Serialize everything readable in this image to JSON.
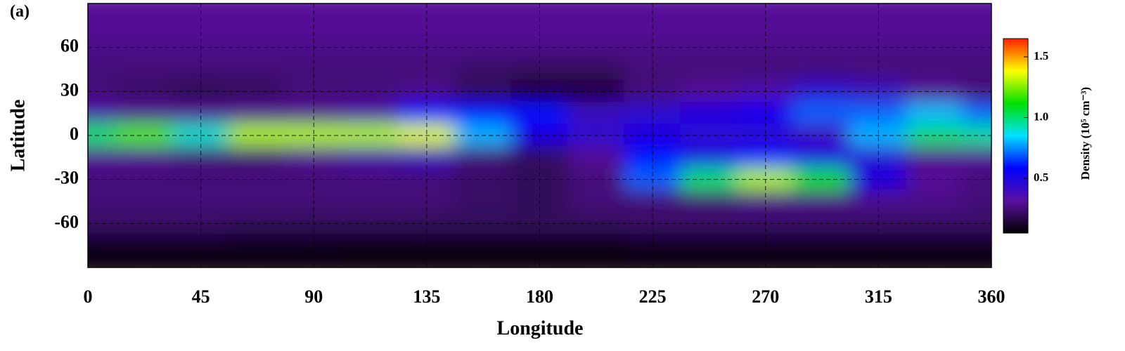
{
  "panel_label": "(a)",
  "chart_data": {
    "type": "heatmap",
    "xlabel": "Longitude",
    "ylabel": "Latitude",
    "x": [
      0,
      22.5,
      45,
      67.5,
      90,
      112.5,
      135,
      157.5,
      180,
      202.5,
      225,
      247.5,
      270,
      292.5,
      315,
      337.5,
      360
    ],
    "y": [
      90,
      75,
      60,
      45,
      30,
      15,
      0,
      -15,
      -30,
      -45,
      -60,
      -75,
      -90
    ],
    "values": [
      [
        0.3,
        0.3,
        0.3,
        0.3,
        0.3,
        0.3,
        0.3,
        0.3,
        0.3,
        0.3,
        0.3,
        0.3,
        0.3,
        0.3,
        0.3,
        0.3,
        0.3
      ],
      [
        0.3,
        0.3,
        0.3,
        0.3,
        0.3,
        0.3,
        0.3,
        0.3,
        0.3,
        0.3,
        0.3,
        0.3,
        0.3,
        0.3,
        0.3,
        0.3,
        0.3
      ],
      [
        0.28,
        0.28,
        0.28,
        0.28,
        0.28,
        0.28,
        0.28,
        0.28,
        0.28,
        0.28,
        0.28,
        0.28,
        0.28,
        0.28,
        0.28,
        0.28,
        0.28
      ],
      [
        0.25,
        0.25,
        0.25,
        0.25,
        0.25,
        0.25,
        0.25,
        0.22,
        0.2,
        0.2,
        0.25,
        0.25,
        0.25,
        0.25,
        0.25,
        0.25,
        0.25
      ],
      [
        0.25,
        0.22,
        0.18,
        0.2,
        0.25,
        0.25,
        0.28,
        0.2,
        0.15,
        0.15,
        0.25,
        0.3,
        0.35,
        0.45,
        0.4,
        0.3,
        0.25
      ],
      [
        0.35,
        0.3,
        0.3,
        0.3,
        0.3,
        0.35,
        0.6,
        0.6,
        0.6,
        0.4,
        0.45,
        0.5,
        0.55,
        0.7,
        0.7,
        0.8,
        0.7
      ],
      [
        1.0,
        1.2,
        0.9,
        1.3,
        1.3,
        1.3,
        1.35,
        0.8,
        0.5,
        0.45,
        0.5,
        0.45,
        0.45,
        0.4,
        0.8,
        1.0,
        0.95
      ],
      [
        0.3,
        0.3,
        0.25,
        0.25,
        0.3,
        0.35,
        0.4,
        0.25,
        0.2,
        0.3,
        0.6,
        0.5,
        0.6,
        0.5,
        0.45,
        0.3,
        0.3
      ],
      [
        0.25,
        0.25,
        0.25,
        0.25,
        0.25,
        0.25,
        0.25,
        0.22,
        0.2,
        0.25,
        0.7,
        1.0,
        1.3,
        1.1,
        0.5,
        0.3,
        0.25
      ],
      [
        0.25,
        0.25,
        0.25,
        0.25,
        0.25,
        0.25,
        0.25,
        0.22,
        0.2,
        0.25,
        0.25,
        0.25,
        0.28,
        0.28,
        0.28,
        0.28,
        0.25
      ],
      [
        0.22,
        0.22,
        0.22,
        0.2,
        0.2,
        0.2,
        0.2,
        0.2,
        0.2,
        0.2,
        0.22,
        0.22,
        0.22,
        0.22,
        0.22,
        0.22,
        0.22
      ],
      [
        0.1,
        0.1,
        0.1,
        0.1,
        0.1,
        0.08,
        0.08,
        0.08,
        0.08,
        0.08,
        0.1,
        0.1,
        0.1,
        0.1,
        0.1,
        0.1,
        0.1
      ],
      [
        0.07,
        0.07,
        0.07,
        0.07,
        0.07,
        0.07,
        0.07,
        0.07,
        0.07,
        0.07,
        0.07,
        0.07,
        0.07,
        0.07,
        0.07,
        0.07,
        0.07
      ]
    ],
    "xlim": [
      0,
      360
    ],
    "ylim": [
      -90,
      90
    ],
    "xticks": [
      0,
      45,
      90,
      135,
      180,
      225,
      270,
      315,
      360
    ],
    "yticks": [
      60,
      30,
      0,
      -30,
      -60
    ],
    "grid": true,
    "colorbar": {
      "label": "Density (10⁵ cm⁻³)",
      "clim": [
        0.05,
        1.65
      ],
      "ticks": [
        0.5,
        {
          "value": 1,
          "label": "1.0"
        },
        1.5
      ],
      "colormap": [
        "#000000",
        "#5a10a0",
        "#0000ff",
        "#00e0ff",
        "#00e000",
        "#ffff00",
        "#ff2000"
      ]
    }
  }
}
